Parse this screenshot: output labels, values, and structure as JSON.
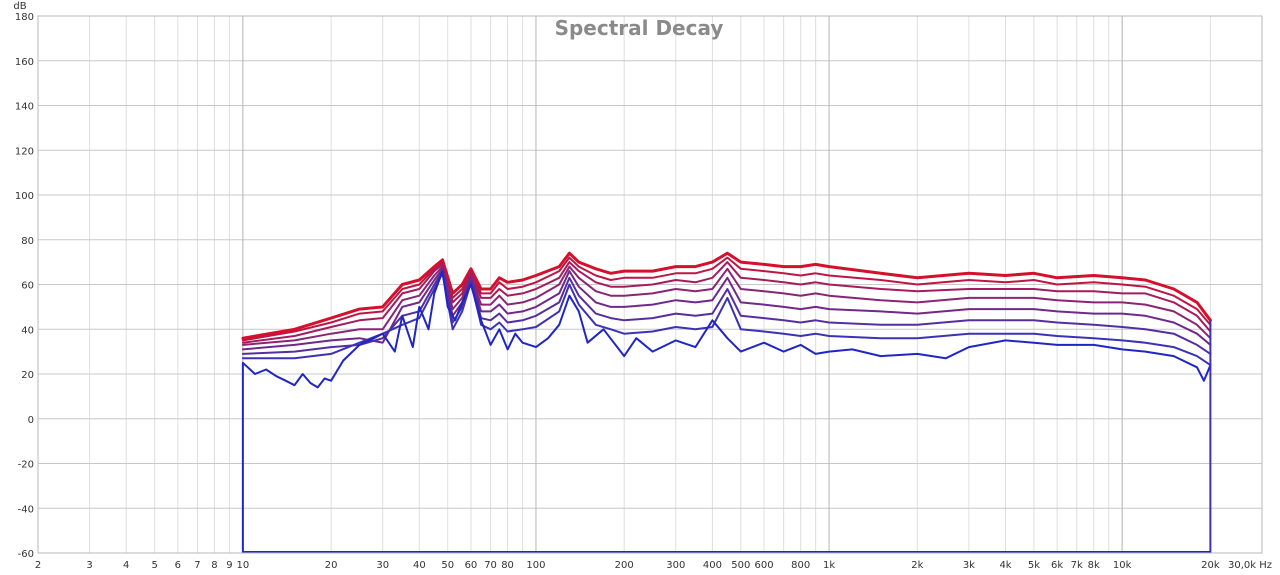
{
  "chart_data": {
    "type": "line",
    "title": "Spectral Decay",
    "ylabel": "dB",
    "xunit": "Hz",
    "xscale": "log",
    "xlim": [
      2,
      30000
    ],
    "ylim": [
      -60,
      180
    ],
    "grid": true,
    "legend": "none",
    "yticks": [
      {
        "value": 180,
        "label": "180"
      },
      {
        "value": 160,
        "label": "160"
      },
      {
        "value": 140,
        "label": "140"
      },
      {
        "value": 120,
        "label": "120"
      },
      {
        "value": 100,
        "label": "100"
      },
      {
        "value": 80,
        "label": "80"
      },
      {
        "value": 60,
        "label": "60"
      },
      {
        "value": 40,
        "label": "40"
      },
      {
        "value": 20,
        "label": "20"
      },
      {
        "value": 0,
        "label": "0"
      },
      {
        "value": -20,
        "label": "-20"
      },
      {
        "value": -40,
        "label": "-40"
      },
      {
        "value": -60,
        "label": "-60"
      }
    ],
    "xticks": [
      {
        "value": 2,
        "label": "2"
      },
      {
        "value": 3,
        "label": "3"
      },
      {
        "value": 4,
        "label": "4"
      },
      {
        "value": 5,
        "label": "5"
      },
      {
        "value": 6,
        "label": "6"
      },
      {
        "value": 7,
        "label": "7"
      },
      {
        "value": 8,
        "label": "8"
      },
      {
        "value": 9,
        "label": "9"
      },
      {
        "value": 10,
        "label": "10"
      },
      {
        "value": 20,
        "label": "20"
      },
      {
        "value": 30,
        "label": "30"
      },
      {
        "value": 40,
        "label": "40"
      },
      {
        "value": 50,
        "label": "50"
      },
      {
        "value": 60,
        "label": "60"
      },
      {
        "value": 70,
        "label": "70"
      },
      {
        "value": 80,
        "label": "80"
      },
      {
        "value": 100,
        "label": "100"
      },
      {
        "value": 200,
        "label": "200"
      },
      {
        "value": 300,
        "label": "300"
      },
      {
        "value": 400,
        "label": "400"
      },
      {
        "value": 500,
        "label": "500"
      },
      {
        "value": 600,
        "label": "600"
      },
      {
        "value": 800,
        "label": "800"
      },
      {
        "value": 1000,
        "label": "1k"
      },
      {
        "value": 2000,
        "label": "2k"
      },
      {
        "value": 3000,
        "label": "3k"
      },
      {
        "value": 4000,
        "label": "4k"
      },
      {
        "value": 5000,
        "label": "5k"
      },
      {
        "value": 6000,
        "label": "6k"
      },
      {
        "value": 7000,
        "label": "7k"
      },
      {
        "value": 8000,
        "label": "8k"
      },
      {
        "value": 10000,
        "label": "10k"
      },
      {
        "value": 20000,
        "label": "20k"
      },
      {
        "value": 30000,
        "label": "30,0k Hz"
      }
    ],
    "series": [
      {
        "color": "#d4102c",
        "width": 3,
        "x": [
          10,
          15,
          20,
          25,
          30,
          35,
          40,
          45,
          48,
          52,
          56,
          60,
          65,
          70,
          75,
          80,
          90,
          100,
          120,
          130,
          140,
          160,
          180,
          200,
          250,
          300,
          350,
          400,
          450,
          500,
          600,
          700,
          800,
          900,
          1000,
          1500,
          2000,
          3000,
          4000,
          5000,
          6000,
          8000,
          10000,
          12000,
          15000,
          18000,
          20000
        ],
        "y": [
          36,
          40,
          45,
          49,
          50,
          60,
          62,
          68,
          71,
          56,
          60,
          67,
          58,
          58,
          63,
          61,
          62,
          64,
          68,
          74,
          70,
          67,
          65,
          66,
          66,
          68,
          68,
          70,
          74,
          70,
          69,
          68,
          68,
          69,
          68,
          65,
          63,
          65,
          64,
          65,
          63,
          64,
          63,
          62,
          58,
          52,
          44
        ]
      },
      {
        "color": "#bf1545",
        "width": 2,
        "x": [
          10,
          15,
          20,
          25,
          30,
          35,
          40,
          45,
          48,
          52,
          56,
          60,
          65,
          70,
          75,
          80,
          90,
          100,
          120,
          130,
          140,
          160,
          180,
          200,
          250,
          300,
          350,
          400,
          450,
          500,
          600,
          700,
          800,
          900,
          1000,
          1500,
          2000,
          3000,
          4000,
          5000,
          6000,
          8000,
          10000,
          12000,
          15000,
          18000,
          20000
        ],
        "y": [
          35,
          39,
          43,
          47,
          48,
          58,
          60,
          67,
          70,
          54,
          58,
          66,
          56,
          56,
          61,
          58,
          59,
          61,
          66,
          72,
          68,
          64,
          62,
          63,
          63,
          65,
          65,
          67,
          72,
          67,
          66,
          65,
          64,
          65,
          64,
          62,
          60,
          62,
          61,
          62,
          60,
          61,
          60,
          59,
          55,
          49,
          42
        ]
      },
      {
        "color": "#a41c5e",
        "width": 2,
        "x": [
          10,
          15,
          20,
          25,
          30,
          35,
          40,
          45,
          48,
          52,
          56,
          60,
          65,
          70,
          75,
          80,
          90,
          100,
          120,
          130,
          140,
          160,
          180,
          200,
          250,
          300,
          350,
          400,
          450,
          500,
          600,
          700,
          800,
          900,
          1000,
          1500,
          2000,
          3000,
          4000,
          5000,
          6000,
          8000,
          10000,
          12000,
          15000,
          18000,
          20000
        ],
        "y": [
          34,
          37,
          41,
          44,
          45,
          56,
          58,
          66,
          69,
          52,
          56,
          65,
          54,
          54,
          58,
          55,
          56,
          58,
          63,
          70,
          66,
          61,
          59,
          59,
          60,
          62,
          61,
          63,
          70,
          63,
          62,
          61,
          60,
          61,
          60,
          58,
          57,
          58,
          58,
          58,
          57,
          57,
          56,
          56,
          52,
          46,
          39
        ]
      },
      {
        "color": "#8a2474",
        "width": 2,
        "x": [
          10,
          15,
          20,
          25,
          30,
          35,
          40,
          45,
          48,
          52,
          56,
          60,
          65,
          70,
          75,
          80,
          90,
          100,
          120,
          130,
          140,
          160,
          180,
          200,
          250,
          300,
          350,
          400,
          450,
          500,
          600,
          700,
          800,
          900,
          1000,
          1500,
          2000,
          3000,
          4000,
          5000,
          6000,
          8000,
          10000,
          12000,
          15000,
          18000,
          20000
        ],
        "y": [
          33,
          35,
          38,
          40,
          40,
          53,
          55,
          64,
          68,
          49,
          54,
          64,
          51,
          51,
          55,
          51,
          52,
          54,
          60,
          68,
          63,
          57,
          55,
          55,
          56,
          58,
          57,
          58,
          67,
          58,
          57,
          56,
          55,
          56,
          55,
          53,
          52,
          54,
          54,
          54,
          53,
          52,
          52,
          51,
          48,
          42,
          36
        ]
      },
      {
        "color": "#70298a",
        "width": 2,
        "x": [
          10,
          15,
          20,
          25,
          30,
          35,
          40,
          45,
          48,
          52,
          56,
          60,
          65,
          70,
          75,
          80,
          90,
          100,
          120,
          130,
          140,
          160,
          180,
          200,
          250,
          300,
          350,
          400,
          450,
          500,
          600,
          700,
          800,
          900,
          1000,
          1500,
          2000,
          3000,
          4000,
          5000,
          6000,
          8000,
          10000,
          12000,
          15000,
          18000,
          20000
        ],
        "y": [
          31,
          33,
          35,
          36,
          34,
          50,
          52,
          62,
          67,
          46,
          52,
          63,
          48,
          48,
          51,
          47,
          48,
          50,
          56,
          66,
          59,
          52,
          50,
          50,
          51,
          53,
          52,
          53,
          63,
          52,
          51,
          50,
          49,
          50,
          49,
          48,
          47,
          49,
          49,
          49,
          48,
          47,
          47,
          46,
          43,
          38,
          33
        ]
      },
      {
        "color": "#552ea0",
        "width": 2,
        "x": [
          10,
          15,
          20,
          25,
          30,
          35,
          40,
          45,
          48,
          52,
          56,
          60,
          65,
          70,
          75,
          80,
          90,
          100,
          120,
          130,
          140,
          160,
          180,
          200,
          250,
          300,
          350,
          400,
          450,
          500,
          600,
          700,
          800,
          900,
          1000,
          1500,
          2000,
          3000,
          4000,
          5000,
          6000,
          8000,
          10000,
          12000,
          15000,
          18000,
          20000
        ],
        "y": [
          29,
          30,
          32,
          33,
          36,
          46,
          48,
          60,
          66,
          43,
          50,
          62,
          45,
          44,
          47,
          43,
          44,
          46,
          52,
          63,
          55,
          47,
          45,
          44,
          45,
          47,
          46,
          47,
          58,
          46,
          45,
          44,
          43,
          44,
          43,
          42,
          42,
          44,
          44,
          44,
          43,
          42,
          41,
          40,
          38,
          33,
          29
        ]
      },
      {
        "color": "#3b32b5",
        "width": 2,
        "x": [
          10,
          15,
          20,
          25,
          30,
          35,
          40,
          45,
          48,
          52,
          56,
          60,
          65,
          70,
          75,
          80,
          90,
          100,
          120,
          130,
          140,
          160,
          180,
          200,
          250,
          300,
          350,
          400,
          450,
          500,
          600,
          700,
          800,
          900,
          1000,
          1500,
          2000,
          3000,
          4000,
          5000,
          6000,
          8000,
          10000,
          12000,
          15000,
          18000,
          20000
        ],
        "y": [
          27,
          27,
          29,
          34,
          38,
          42,
          45,
          58,
          65,
          40,
          48,
          61,
          42,
          40,
          43,
          39,
          40,
          41,
          48,
          60,
          51,
          42,
          40,
          38,
          39,
          41,
          40,
          41,
          54,
          40,
          39,
          38,
          37,
          38,
          37,
          36,
          36,
          38,
          38,
          38,
          37,
          36,
          35,
          34,
          32,
          28,
          24
        ]
      },
      {
        "color": "#1f26c4",
        "width": 2,
        "x": [
          10,
          11,
          12,
          13,
          14,
          15,
          16,
          17,
          18,
          19,
          20,
          22,
          25,
          28,
          30,
          33,
          35,
          38,
          40,
          43,
          45,
          48,
          50,
          53,
          56,
          60,
          65,
          70,
          75,
          80,
          85,
          90,
          100,
          110,
          120,
          130,
          140,
          150,
          170,
          200,
          220,
          250,
          300,
          350,
          400,
          450,
          500,
          600,
          700,
          800,
          900,
          1000,
          1200,
          1500,
          2000,
          2500,
          3000,
          4000,
          5000,
          6000,
          8000,
          10000,
          12000,
          15000,
          18000,
          19000,
          20000
        ],
        "y": [
          25,
          20,
          22,
          19,
          17,
          15,
          20,
          16,
          14,
          18,
          17,
          26,
          33,
          36,
          38,
          30,
          46,
          32,
          50,
          40,
          56,
          66,
          50,
          44,
          52,
          60,
          44,
          33,
          40,
          31,
          38,
          34,
          32,
          36,
          42,
          55,
          48,
          34,
          40,
          28,
          36,
          30,
          35,
          32,
          44,
          36,
          30,
          34,
          30,
          33,
          29,
          30,
          31,
          28,
          29,
          27,
          32,
          35,
          34,
          33,
          33,
          31,
          30,
          28,
          23,
          17,
          24
        ]
      }
    ]
  }
}
